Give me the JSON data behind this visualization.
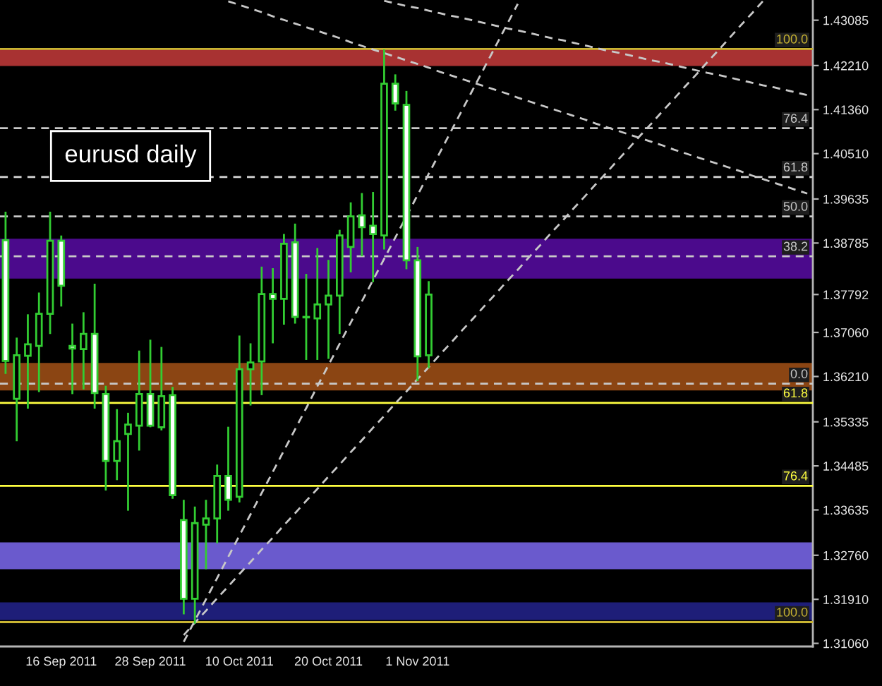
{
  "chart_data": {
    "type": "candlestick",
    "title": "eurusd daily",
    "categories": [
      null,
      null,
      null,
      null,
      null,
      "16 Sep 2011",
      null,
      null,
      null,
      null,
      null,
      null,
      null,
      "28 Sep 2011",
      null,
      null,
      null,
      null,
      null,
      null,
      null,
      "10 Oct 2011",
      null,
      null,
      null,
      null,
      null,
      null,
      null,
      "20 Oct 2011",
      null,
      null,
      null,
      null,
      null,
      null,
      null,
      "1 Nov 2011",
      null,
      null,
      null,
      null,
      null,
      null,
      null,
      null,
      null,
      null,
      null,
      null,
      null,
      null,
      null,
      null,
      null,
      null,
      null,
      null,
      null,
      null,
      null,
      null,
      null,
      null,
      null,
      null,
      null,
      null,
      null,
      null,
      null,
      null,
      null
    ],
    "ohlc": [
      [
        1.3884,
        1.3939,
        1.3626,
        1.3651
      ],
      [
        1.3578,
        1.3696,
        1.3496,
        1.3662
      ],
      [
        1.3661,
        1.3741,
        1.3559,
        1.3683
      ],
      [
        1.368,
        1.3783,
        1.3591,
        1.3742
      ],
      [
        1.3742,
        1.3939,
        1.3703,
        1.3883
      ],
      [
        1.3883,
        1.3893,
        1.3756,
        1.3796
      ],
      [
        1.368,
        1.3723,
        1.3587,
        1.3675
      ],
      [
        1.3674,
        1.3745,
        1.3596,
        1.3703
      ],
      [
        1.3703,
        1.38,
        1.3559,
        1.3589
      ],
      [
        1.3587,
        1.3603,
        1.3401,
        1.3458
      ],
      [
        1.3458,
        1.3558,
        1.3421,
        1.3496
      ],
      [
        1.351,
        1.3551,
        1.3362,
        1.3528
      ],
      [
        1.3526,
        1.3671,
        1.3478,
        1.3587
      ],
      [
        1.3587,
        1.3692,
        1.3523,
        1.3526
      ],
      [
        1.3523,
        1.3678,
        1.3517,
        1.3583
      ],
      [
        1.3585,
        1.3601,
        1.3385,
        1.3392
      ],
      [
        1.3344,
        1.3383,
        1.3162,
        1.3192
      ],
      [
        1.3192,
        1.337,
        1.3144,
        1.3338
      ],
      [
        1.3335,
        1.3383,
        1.3249,
        1.3347
      ],
      [
        1.3347,
        1.3451,
        1.3299,
        1.3429
      ],
      [
        1.3429,
        1.3524,
        1.3362,
        1.3383
      ],
      [
        1.3389,
        1.37,
        1.3378,
        1.3635
      ],
      [
        1.3635,
        1.3685,
        1.3565,
        1.3648
      ],
      [
        1.365,
        1.3833,
        1.3585,
        1.378
      ],
      [
        1.378,
        1.383,
        1.3685,
        1.3771
      ],
      [
        1.3771,
        1.3896,
        1.3721,
        1.3877
      ],
      [
        1.388,
        1.3916,
        1.3723,
        1.3736
      ],
      [
        1.3736,
        1.3819,
        1.3653,
        1.3735
      ],
      [
        1.3733,
        1.3869,
        1.3653,
        1.376
      ],
      [
        1.376,
        1.3846,
        1.3655,
        1.3777
      ],
      [
        1.3777,
        1.3904,
        1.3703,
        1.3893
      ],
      [
        1.3871,
        1.3957,
        1.3822,
        1.393
      ],
      [
        1.3932,
        1.3975,
        1.3853,
        1.3909
      ],
      [
        1.3912,
        1.3977,
        1.3803,
        1.3896
      ],
      [
        1.3893,
        1.4252,
        1.3866,
        1.4186
      ],
      [
        1.4186,
        1.4204,
        1.4134,
        1.4148
      ],
      [
        1.4145,
        1.4172,
        1.3828,
        1.3845
      ],
      [
        1.3845,
        1.3871,
        1.3612,
        1.366
      ],
      [
        1.3662,
        1.3805,
        1.3637,
        1.37792
      ],
      null,
      null,
      null,
      null,
      null,
      null,
      null,
      null,
      null,
      null,
      null,
      null,
      null,
      null,
      null,
      null,
      null,
      null,
      null,
      null,
      null,
      null,
      null,
      null,
      null,
      null,
      null,
      null,
      null,
      null,
      null,
      null,
      null,
      null
    ],
    "color": "#32cd32",
    "colors": [
      "#ffffff",
      "#000000",
      "#000000",
      "#000000",
      "#000000",
      "#ffffff",
      "#ffffff",
      "#000000",
      "#ffffff",
      "#ffffff",
      "#000000",
      "#000000",
      "#000000",
      "#ffffff",
      "#000000",
      "#ffffff",
      "#ffffff",
      "#000000",
      "#000000",
      "#000000",
      "#ffffff",
      "#000000",
      "#000000",
      "#000000",
      "#ffffff",
      "#000000",
      "#ffffff",
      "#ffffff",
      "#000000",
      "#000000",
      "#000000",
      "#000000",
      "#ffffff",
      "#ffffff",
      "#000000",
      "#ffffff",
      "#ffffff",
      "#ffffff",
      "#000000",
      null,
      null,
      null,
      null,
      null,
      null,
      null,
      null,
      null,
      null,
      null,
      null,
      null,
      null,
      null,
      null,
      null,
      null,
      null,
      null,
      null,
      null,
      null,
      null,
      null,
      null,
      null,
      null,
      null,
      null,
      null,
      null,
      null,
      null
    ],
    "series": [
      {
        "type": "line",
        "color": "#c8c8c8",
        "line_style": "dashed",
        "values": [
          null,
          null,
          null,
          null,
          null,
          null,
          null,
          null,
          null,
          null,
          null,
          null,
          null,
          null,
          null,
          null,
          1.3109,
          1.315,
          1.3191,
          1.3232,
          1.3273,
          1.3314,
          1.3355,
          1.3396,
          1.3437,
          1.3478,
          1.3519,
          1.356,
          1.3602,
          1.3643,
          1.3684,
          1.3725,
          1.3766,
          1.3807,
          1.3848,
          1.3889,
          1.393,
          1.3971,
          1.4012,
          1.4053,
          1.4094,
          1.4135,
          1.4176,
          1.4217,
          1.4258,
          1.4299,
          1.434,
          null,
          null,
          null,
          null,
          null,
          null,
          null,
          null,
          null,
          null,
          null,
          null,
          null,
          null,
          null,
          null,
          null,
          null,
          null,
          null,
          null,
          null,
          null,
          null,
          null,
          null
        ]
      },
      {
        "type": "line",
        "color": "#c8c8c8",
        "line_style": "dashed",
        "values": [
          null,
          null,
          null,
          null,
          null,
          null,
          null,
          null,
          null,
          null,
          null,
          null,
          null,
          null,
          null,
          null,
          1.3122,
          1.3146,
          1.3169,
          1.3193,
          1.3216,
          1.324,
          1.3263,
          1.3287,
          1.331,
          1.3334,
          1.3357,
          1.3381,
          1.3404,
          1.3428,
          1.3451,
          1.3475,
          1.3498,
          1.3522,
          1.3545,
          1.3569,
          1.3592,
          1.3616,
          1.3639,
          1.3663,
          1.3686,
          1.371,
          1.3733,
          1.3757,
          1.378,
          1.3804,
          1.3827,
          1.3851,
          1.3874,
          1.3898,
          1.3921,
          1.3945,
          1.3968,
          1.3992,
          1.4015,
          1.4039,
          1.4062,
          1.4086,
          1.4109,
          1.4133,
          1.4156,
          1.418,
          1.4203,
          1.4227,
          1.425,
          1.4274,
          1.4298,
          1.4321,
          1.4345,
          null,
          null,
          null,
          null
        ]
      },
      {
        "type": "line",
        "color": "#c8c8c8",
        "line_style": "dashed",
        "values": [
          null,
          null,
          null,
          null,
          null,
          null,
          null,
          null,
          null,
          null,
          null,
          null,
          null,
          null,
          null,
          null,
          null,
          null,
          null,
          null,
          1.4345,
          1.4338,
          1.4331,
          1.4324,
          1.4316,
          1.4309,
          1.4302,
          1.4295,
          1.4288,
          1.4281,
          1.4274,
          1.4266,
          1.4259,
          1.4252,
          1.4245,
          1.4238,
          1.4231,
          1.4224,
          1.4217,
          1.4209,
          1.4202,
          1.4195,
          1.4188,
          1.4181,
          1.4174,
          1.4167,
          1.4159,
          1.4152,
          1.4145,
          1.4138,
          1.4131,
          1.4124,
          1.4117,
          1.4109,
          1.4102,
          1.4095,
          1.4088,
          1.4081,
          1.4074,
          1.4067,
          1.4059,
          1.4052,
          1.4045,
          1.4038,
          1.4031,
          1.4024,
          1.4017,
          1.4009,
          1.4002,
          1.3995,
          1.3988,
          1.3981,
          1.3974
        ]
      },
      {
        "type": "line",
        "color": "#c8c8c8",
        "line_style": "dashed",
        "values": [
          null,
          null,
          null,
          null,
          null,
          null,
          null,
          null,
          null,
          null,
          null,
          null,
          null,
          null,
          null,
          null,
          null,
          null,
          null,
          null,
          null,
          null,
          null,
          null,
          null,
          null,
          null,
          null,
          null,
          null,
          null,
          null,
          null,
          null,
          1.4346,
          1.4341,
          1.4336,
          1.4332,
          1.4327,
          1.4322,
          1.4317,
          1.4313,
          1.4308,
          1.4303,
          1.4298,
          1.4293,
          1.4289,
          1.4284,
          1.4279,
          1.4274,
          1.427,
          1.4265,
          1.426,
          1.4255,
          1.425,
          1.4246,
          1.4241,
          1.4236,
          1.4231,
          1.4227,
          1.4222,
          1.4217,
          1.4212,
          1.4207,
          1.4203,
          1.4198,
          1.4193,
          1.4188,
          1.4183,
          1.4179,
          1.4174,
          1.4169,
          1.4164
        ]
      }
    ],
    "bands": [
      {
        "axis": "y",
        "from": 1.422,
        "to": 1.4252,
        "color": "#a83232"
      },
      {
        "axis": "y",
        "from": 1.381,
        "to": 1.3887,
        "color": "#4b0a8c"
      },
      {
        "axis": "y",
        "from": 1.3594,
        "to": 1.3647,
        "color": "#8b4513"
      },
      {
        "axis": "y",
        "from": 1.3249,
        "to": 1.3301,
        "color": "#6a5acd"
      },
      {
        "axis": "y",
        "from": 1.3151,
        "to": 1.3185,
        "color": "#1e1e78"
      }
    ],
    "ref_lines": [
      {
        "axis": "y",
        "value": 1.4253,
        "color": "#c8b432",
        "line_style": "solid"
      },
      {
        "axis": "y",
        "value": 1.41,
        "color": "#c8c8c8",
        "line_style": "dashed"
      },
      {
        "axis": "y",
        "value": 1.4006,
        "color": "#c8c8c8",
        "line_style": "dashed"
      },
      {
        "axis": "y",
        "value": 1.393,
        "color": "#c8c8c8",
        "line_style": "dashed"
      },
      {
        "axis": "y",
        "value": 1.3853,
        "color": "#c8c8c8",
        "line_style": "dashed"
      },
      {
        "axis": "y",
        "value": 1.3607,
        "color": "#c8c8c8",
        "line_style": "dashed"
      },
      {
        "axis": "y",
        "value": 1.357,
        "color": "#ffff40",
        "line_style": "solid"
      },
      {
        "axis": "y",
        "value": 1.341,
        "color": "#ffff40",
        "line_style": "solid"
      },
      {
        "axis": "y",
        "value": 1.3147,
        "color": "#c8b432",
        "line_style": "solid"
      }
    ],
    "annotations": [
      {
        "text": "100.0",
        "y": 1.4253
      },
      {
        "text": "76.4",
        "y": 1.41
      },
      {
        "text": "61.8",
        "y": 1.4006
      },
      {
        "text": "50.0",
        "y": 1.393
      },
      {
        "text": "38.2",
        "y": 1.3853
      },
      {
        "text": "0.0",
        "y": 1.3607
      },
      {
        "text": "61.8",
        "y": 1.357
      },
      {
        "text": "76.4",
        "y": 1.341
      },
      {
        "text": "100.0",
        "y": 1.3147
      }
    ],
    "ylim": [
      1.31,
      1.43475
    ],
    "yticks": [
      1.43085,
      {
        "value": 1.4221,
        "label": "1.42210"
      },
      {
        "value": 1.4136,
        "label": "1.41360"
      },
      {
        "value": 1.4051,
        "label": "1.40510"
      },
      1.39635,
      1.38785,
      1.37792,
      {
        "value": 1.3706,
        "label": "1.37060"
      },
      {
        "value": 1.3621,
        "label": "1.36210"
      },
      1.35335,
      1.34485,
      1.33635,
      {
        "value": 1.3276,
        "label": "1.32760"
      },
      {
        "value": 1.3191,
        "label": "1.31910"
      },
      {
        "value": 1.3106,
        "label": "1.31060"
      }
    ]
  }
}
